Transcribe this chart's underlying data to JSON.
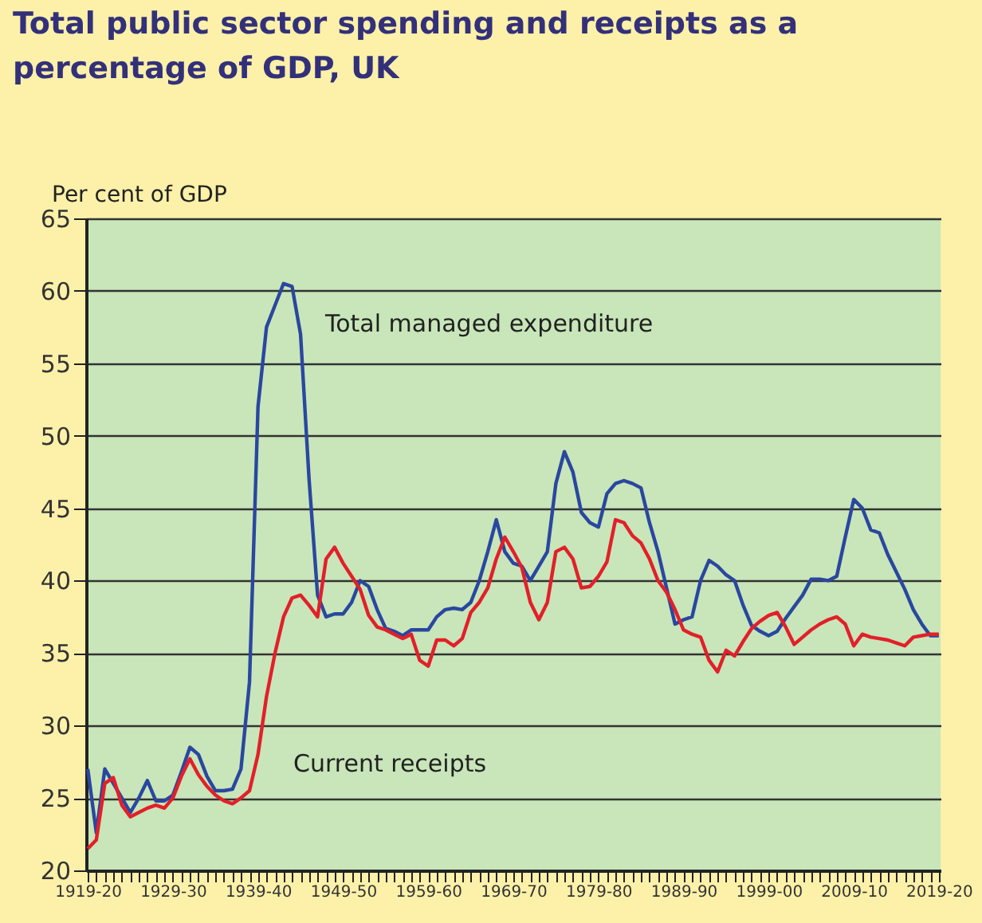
{
  "chart_data": {
    "type": "line",
    "title": "Total public sector spending and receipts as a percentage of GDP, UK",
    "ylabel": "Per cent of GDP",
    "categories": [
      "1919-20",
      null,
      null,
      null,
      null,
      null,
      null,
      null,
      null,
      null,
      "1929-30",
      null,
      null,
      null,
      null,
      null,
      null,
      null,
      null,
      null,
      "1939-40",
      null,
      null,
      null,
      null,
      null,
      null,
      null,
      null,
      null,
      "1949-50",
      null,
      null,
      null,
      null,
      null,
      null,
      null,
      null,
      null,
      "1959-60",
      null,
      null,
      null,
      null,
      null,
      null,
      null,
      null,
      null,
      "1969-70",
      null,
      null,
      null,
      null,
      null,
      null,
      null,
      null,
      null,
      "1979-80",
      null,
      null,
      null,
      null,
      null,
      null,
      null,
      null,
      null,
      "1989-90",
      null,
      null,
      null,
      null,
      null,
      null,
      null,
      null,
      null,
      "1999-00",
      null,
      null,
      null,
      null,
      null,
      null,
      null,
      null,
      null,
      "2009-10",
      null,
      null,
      null,
      null,
      null,
      null,
      null,
      null,
      null,
      "2019-20"
    ],
    "series": [
      {
        "name": "Total managed expenditure",
        "color": "#2a47a0",
        "values": [
          27.0,
          22.6,
          27.0,
          26.0,
          25.0,
          24.0,
          25.0,
          26.2,
          24.8,
          24.8,
          25.2,
          26.8,
          28.5,
          28.0,
          26.5,
          25.5,
          25.5,
          25.6,
          27.0,
          33.0,
          52.0,
          57.5,
          59.0,
          60.5,
          60.3,
          57.0,
          47.0,
          39.0,
          37.5,
          37.7,
          37.7,
          38.5,
          40.0,
          39.6,
          38.0,
          36.7,
          36.5,
          36.2,
          36.6,
          36.6,
          36.6,
          37.5,
          38.0,
          38.1,
          38.0,
          38.5,
          40.0,
          42.0,
          44.2,
          42.0,
          41.2,
          41.0,
          40.0,
          41.0,
          42.0,
          46.7,
          48.9,
          47.5,
          44.7,
          44.0,
          43.7,
          46.0,
          46.7,
          46.9,
          46.7,
          46.4,
          44.0,
          42.0,
          39.5,
          37.0,
          37.3,
          37.5,
          40.0,
          41.4,
          41.0,
          40.4,
          40.0,
          38.3,
          36.9,
          36.5,
          36.2,
          36.5,
          37.4,
          38.2,
          39.0,
          40.1,
          40.1,
          40.0,
          40.3,
          43.0,
          45.6,
          45.0,
          43.5,
          43.3,
          41.8,
          40.6,
          39.4,
          38.0,
          37.0,
          36.2,
          36.2
        ]
      },
      {
        "name": "Current receipts",
        "color": "#e2202a",
        "values": [
          21.5,
          22.1,
          26.0,
          26.4,
          24.5,
          23.7,
          24.0,
          24.3,
          24.5,
          24.3,
          25.0,
          26.5,
          27.7,
          26.6,
          25.8,
          25.2,
          24.8,
          24.6,
          25.0,
          25.5,
          28.0,
          32.0,
          35.0,
          37.5,
          38.8,
          39.0,
          38.3,
          37.5,
          41.5,
          42.3,
          41.2,
          40.3,
          39.4,
          37.6,
          36.8,
          36.6,
          36.3,
          36.0,
          36.3,
          34.5,
          34.1,
          35.9,
          35.9,
          35.5,
          36.0,
          37.8,
          38.5,
          39.5,
          41.5,
          43.0,
          42.0,
          40.9,
          38.5,
          37.3,
          38.5,
          42.0,
          42.3,
          41.5,
          39.5,
          39.6,
          40.3,
          41.3,
          44.2,
          44.0,
          43.1,
          42.6,
          41.5,
          40.0,
          39.2,
          38.0,
          36.6,
          36.3,
          36.1,
          34.5,
          33.7,
          35.2,
          34.8,
          35.8,
          36.7,
          37.2,
          37.6,
          37.8,
          36.8,
          35.6,
          36.1,
          36.6,
          37.0,
          37.3,
          37.5,
          37.0,
          35.5,
          36.3,
          36.1,
          36.0,
          35.9,
          35.7,
          35.5,
          36.1,
          36.2,
          36.3,
          36.3
        ]
      }
    ],
    "ylim": [
      20,
      65
    ],
    "yticks": [
      20,
      25,
      30,
      35,
      40,
      45,
      50,
      55,
      60,
      65
    ],
    "grid": "y",
    "legend": false,
    "line_style": "solid",
    "marker": "none"
  }
}
